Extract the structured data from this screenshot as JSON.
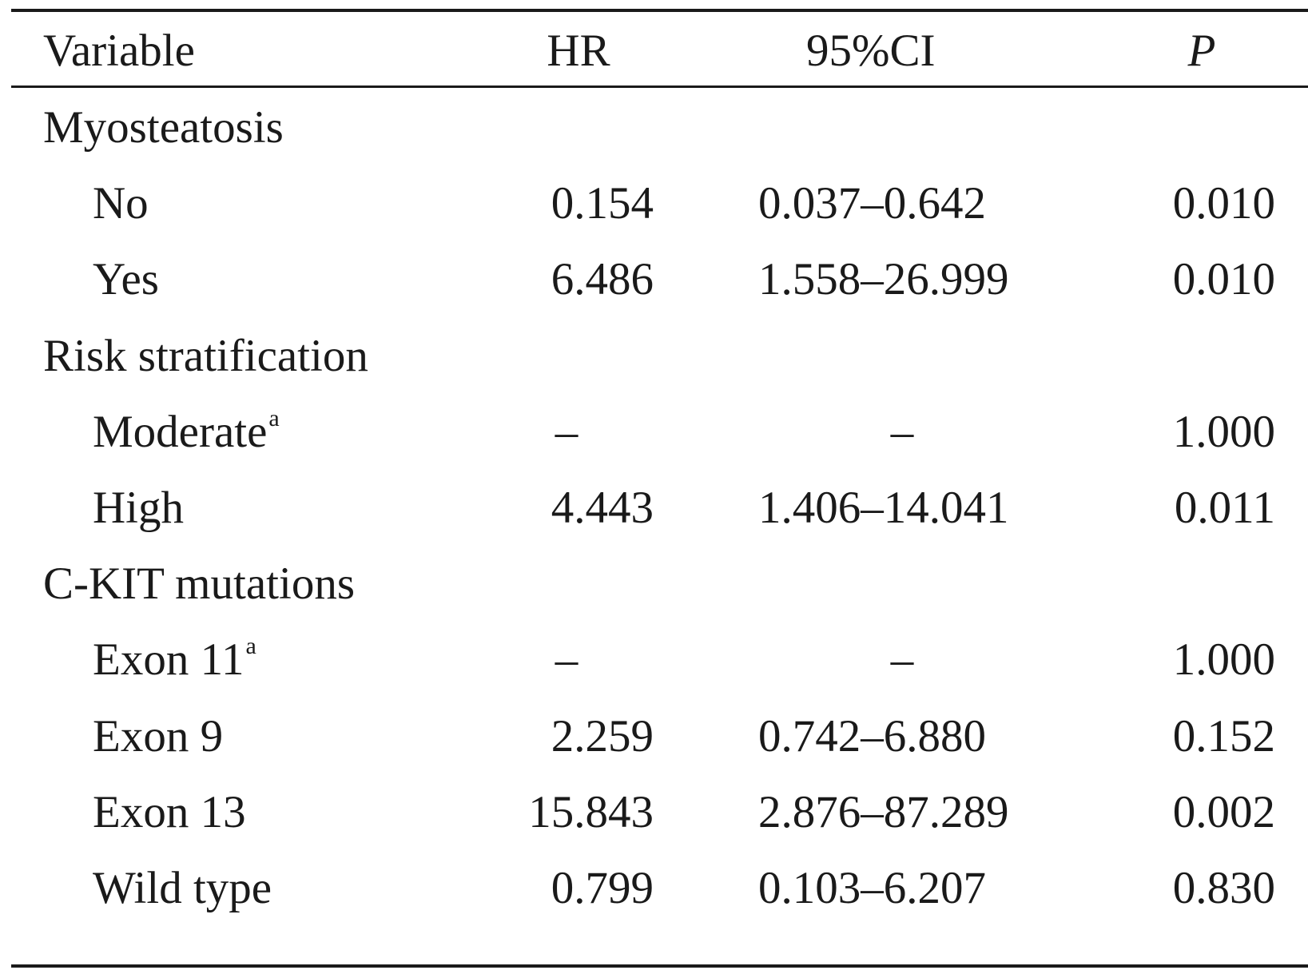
{
  "header": {
    "variable": "Variable",
    "hr": "HR",
    "ci": "95%CI",
    "p": "P"
  },
  "rows": [
    {
      "type": "group",
      "label": "Myosteatosis"
    },
    {
      "type": "item",
      "label": "No",
      "note": "",
      "hr": "0.154",
      "ci": "0.037–0.642",
      "p": "0.010"
    },
    {
      "type": "item",
      "label": "Yes",
      "note": "",
      "hr": "6.486",
      "ci": "1.558–26.999",
      "p": "0.010"
    },
    {
      "type": "group",
      "label": "Risk stratification"
    },
    {
      "type": "item",
      "label": "Moderate",
      "note": "a",
      "hr": "–",
      "ci": "–",
      "p": "1.000"
    },
    {
      "type": "item",
      "label": "High",
      "note": "",
      "hr": "4.443",
      "ci": "1.406–14.041",
      "p": "0.011"
    },
    {
      "type": "group",
      "label": "C-KIT mutations"
    },
    {
      "type": "item",
      "label": "Exon 11",
      "note": "a",
      "hr": "–",
      "ci": "–",
      "p": "1.000"
    },
    {
      "type": "item",
      "label": "Exon 9",
      "note": "",
      "hr": "2.259",
      "ci": "0.742–6.880",
      "p": "0.152"
    },
    {
      "type": "item",
      "label": "Exon 13",
      "note": "",
      "hr": "15.843",
      "ci": "2.876–87.289",
      "p": "0.002"
    },
    {
      "type": "item",
      "label": "Wild type",
      "note": "",
      "hr": "0.799",
      "ci": "0.103–6.207",
      "p": "0.830"
    }
  ]
}
